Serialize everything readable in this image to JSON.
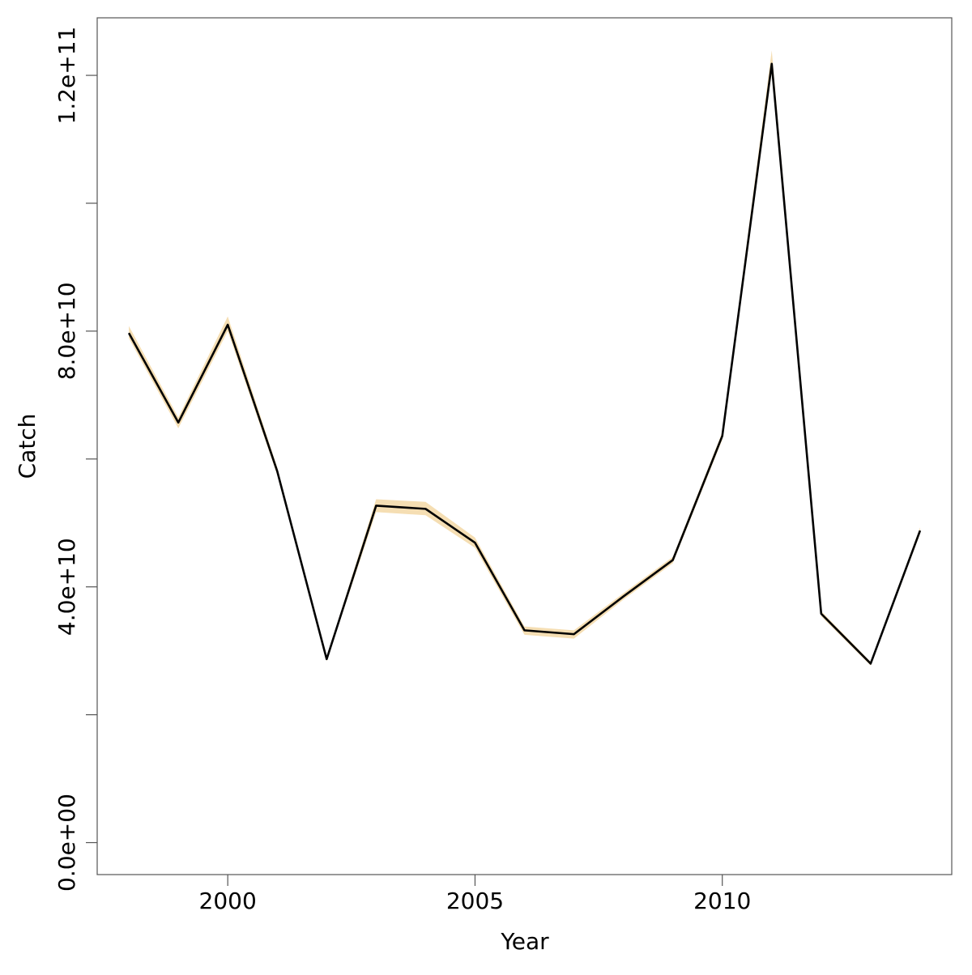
{
  "chart_data": {
    "type": "line",
    "xlabel": "Year",
    "ylabel": "Catch",
    "x": [
      1998,
      1999,
      2000,
      2001,
      2002,
      2003,
      2004,
      2005,
      2006,
      2007,
      2008,
      2009,
      2010,
      2011,
      2012,
      2013,
      2014
    ],
    "values": [
      79700000000,
      65700000000,
      81000000000,
      58100000000,
      28700000000,
      52700000000,
      52200000000,
      46900000000,
      33200000000,
      32600000000,
      38500000000,
      44200000000,
      63600000000,
      121800000000,
      35800000000,
      28000000000,
      48800000000
    ],
    "upper": [
      80800000000,
      66500000000,
      82300000000,
      58700000000,
      29000000000,
      53700000000,
      53300000000,
      47700000000,
      33800000000,
      33200000000,
      39000000000,
      44700000000,
      64200000000,
      123900000000,
      36200000000,
      28300000000,
      49300000000
    ],
    "lower": [
      78900000000,
      64800000000,
      80000000000,
      57500000000,
      28400000000,
      51700000000,
      51200000000,
      46100000000,
      32500000000,
      31900000000,
      38000000000,
      43700000000,
      63000000000,
      120500000000,
      35400000000,
      27700000000,
      48300000000
    ],
    "color": "#000000",
    "band_color": "#f5deb3",
    "xlim": [
      1997.36,
      2014.64
    ],
    "ylim": [
      -5000000000,
      129000000000
    ],
    "xticks": [
      2000,
      2005,
      2010
    ],
    "yticks": [
      {
        "value": 0,
        "label": "0.0e+00"
      },
      {
        "value": 40000000000,
        "label": "4.0e+10"
      },
      {
        "value": 80000000000,
        "label": "8.0e+10"
      },
      {
        "value": 120000000000,
        "label": "1.2e+11"
      }
    ],
    "yticks_minor": [
      20000000000,
      60000000000,
      100000000000
    ]
  }
}
